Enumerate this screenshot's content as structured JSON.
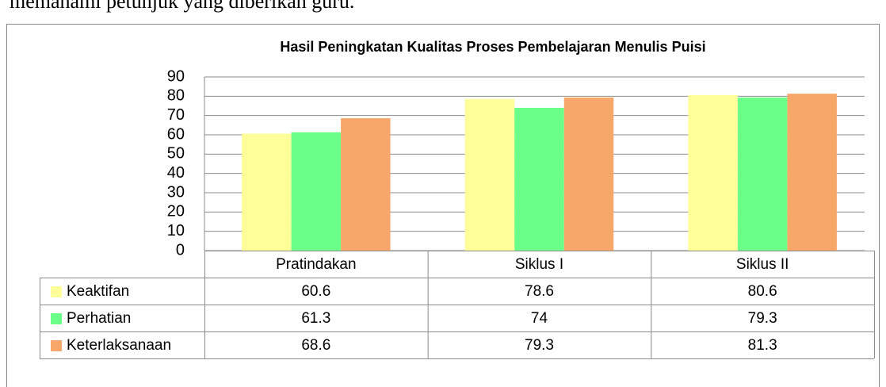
{
  "text_above": "memahami petunjuk yang diberikan guru.",
  "chart_data": {
    "type": "bar",
    "title": "Hasil Peningkatan Kualitas Proses Pembelajaran Menulis Puisi",
    "categories": [
      "Pratindakan",
      "Siklus I",
      "Siklus II"
    ],
    "series": [
      {
        "name": "Keaktifan",
        "color": "#ffff99",
        "values": [
          60.6,
          78.6,
          80.6
        ]
      },
      {
        "name": "Perhatian",
        "color": "#6bff8a",
        "values": [
          61.3,
          74,
          79.3
        ]
      },
      {
        "name": "Keterlaksanaan",
        "color": "#f8a76a",
        "values": [
          68.6,
          79.3,
          81.3
        ]
      }
    ],
    "ylim": [
      0,
      90
    ],
    "yticks": [
      0,
      10,
      20,
      30,
      40,
      50,
      60,
      70,
      80,
      90
    ],
    "grid": true,
    "data_table": true
  }
}
